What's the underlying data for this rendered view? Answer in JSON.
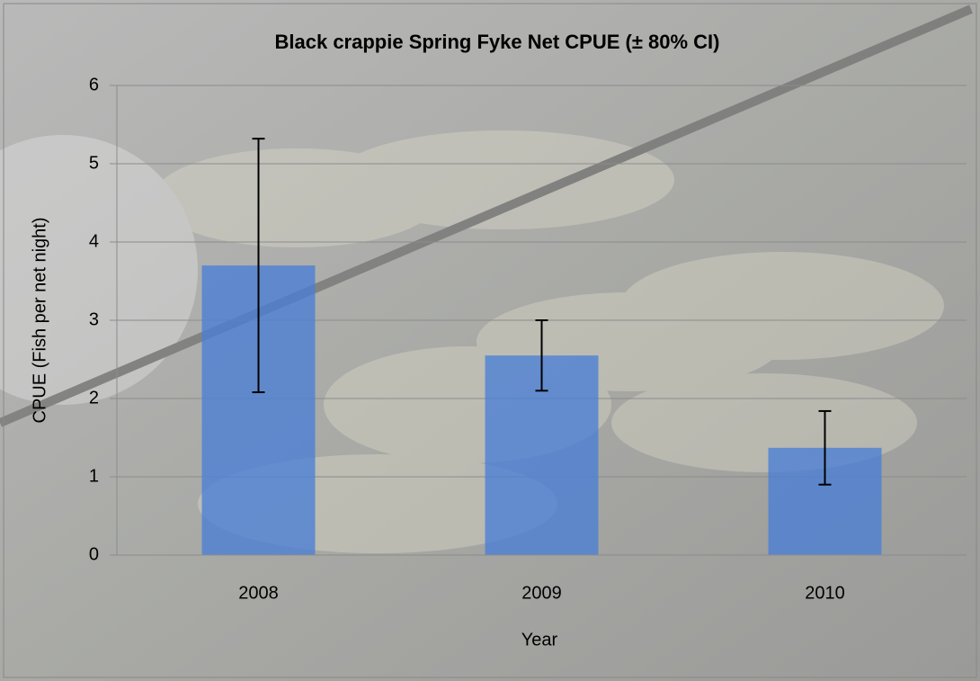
{
  "chart_data": {
    "type": "bar",
    "title": "Black crappie Spring Fyke Net CPUE (± 80% CI)",
    "x_label": "Year",
    "y_label": "CPUE (Fish per net night)",
    "categories": [
      "2008",
      "2009",
      "2010"
    ],
    "values": [
      3.7,
      2.55,
      1.37
    ],
    "errors": [
      1.62,
      0.45,
      0.47
    ],
    "color": "#4a7fd6",
    "ylim": [
      0,
      6
    ],
    "yticks": [
      0,
      1,
      2,
      3,
      4,
      5,
      6
    ],
    "grid": true
  }
}
